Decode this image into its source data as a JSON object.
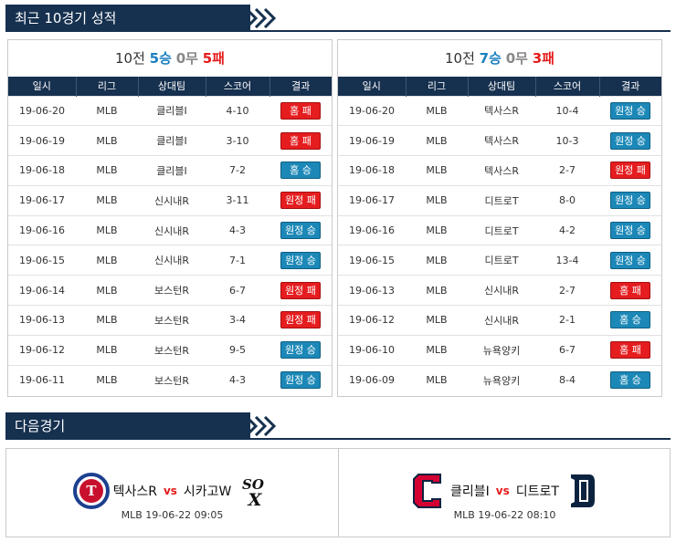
{
  "sections": {
    "recent_title": "최근 10경기 성적",
    "next_title": "다음경기"
  },
  "colors": {
    "navy": "#16304f",
    "win_blue": "#1c88b7",
    "loss_red": "#e51d1f"
  },
  "headers": [
    "일시",
    "리그",
    "상대팀",
    "스코어",
    "결과"
  ],
  "left": {
    "summary": {
      "games": "10전",
      "wins": "5승",
      "draws": "0무",
      "losses": "5패"
    },
    "rows": [
      {
        "date": "19-06-20",
        "league": "MLB",
        "opponent": "클리블I",
        "score": "4-10",
        "result": "홈 패",
        "tone": "red"
      },
      {
        "date": "19-06-19",
        "league": "MLB",
        "opponent": "클리블I",
        "score": "3-10",
        "result": "홈 패",
        "tone": "red"
      },
      {
        "date": "19-06-18",
        "league": "MLB",
        "opponent": "클리블I",
        "score": "7-2",
        "result": "홈 승",
        "tone": "blue"
      },
      {
        "date": "19-06-17",
        "league": "MLB",
        "opponent": "신시내R",
        "score": "3-11",
        "result": "원정 패",
        "tone": "red"
      },
      {
        "date": "19-06-16",
        "league": "MLB",
        "opponent": "신시내R",
        "score": "4-3",
        "result": "원정 승",
        "tone": "blue"
      },
      {
        "date": "19-06-15",
        "league": "MLB",
        "opponent": "신시내R",
        "score": "7-1",
        "result": "원정 승",
        "tone": "blue"
      },
      {
        "date": "19-06-14",
        "league": "MLB",
        "opponent": "보스턴R",
        "score": "6-7",
        "result": "원정 패",
        "tone": "red"
      },
      {
        "date": "19-06-13",
        "league": "MLB",
        "opponent": "보스턴R",
        "score": "3-4",
        "result": "원정 패",
        "tone": "red"
      },
      {
        "date": "19-06-12",
        "league": "MLB",
        "opponent": "보스턴R",
        "score": "9-5",
        "result": "원정 승",
        "tone": "blue"
      },
      {
        "date": "19-06-11",
        "league": "MLB",
        "opponent": "보스턴R",
        "score": "4-3",
        "result": "원정 승",
        "tone": "blue"
      }
    ]
  },
  "right": {
    "summary": {
      "games": "10전",
      "wins": "7승",
      "draws": "0무",
      "losses": "3패"
    },
    "rows": [
      {
        "date": "19-06-20",
        "league": "MLB",
        "opponent": "텍사스R",
        "score": "10-4",
        "result": "원정 승",
        "tone": "blue"
      },
      {
        "date": "19-06-19",
        "league": "MLB",
        "opponent": "텍사스R",
        "score": "10-3",
        "result": "원정 승",
        "tone": "blue"
      },
      {
        "date": "19-06-18",
        "league": "MLB",
        "opponent": "텍사스R",
        "score": "2-7",
        "result": "원정 패",
        "tone": "red"
      },
      {
        "date": "19-06-17",
        "league": "MLB",
        "opponent": "디트로T",
        "score": "8-0",
        "result": "원정 승",
        "tone": "blue"
      },
      {
        "date": "19-06-16",
        "league": "MLB",
        "opponent": "디트로T",
        "score": "4-2",
        "result": "원정 승",
        "tone": "blue"
      },
      {
        "date": "19-06-15",
        "league": "MLB",
        "opponent": "디트로T",
        "score": "13-4",
        "result": "원정 승",
        "tone": "blue"
      },
      {
        "date": "19-06-13",
        "league": "MLB",
        "opponent": "신시내R",
        "score": "2-7",
        "result": "홈 패",
        "tone": "red"
      },
      {
        "date": "19-06-12",
        "league": "MLB",
        "opponent": "신시내R",
        "score": "2-1",
        "result": "홈 승",
        "tone": "blue"
      },
      {
        "date": "19-06-10",
        "league": "MLB",
        "opponent": "뉴욕양키",
        "score": "6-7",
        "result": "홈 패",
        "tone": "red"
      },
      {
        "date": "19-06-09",
        "league": "MLB",
        "opponent": "뉴욕양키",
        "score": "8-4",
        "result": "홈 승",
        "tone": "blue"
      }
    ]
  },
  "next_games": [
    {
      "home": "텍사스R",
      "vs": "vs",
      "away": "시카고W",
      "info": "MLB 19-06-22 09:05",
      "home_logo": "texas-rangers-logo-icon",
      "away_logo": "white-sox-logo-icon"
    },
    {
      "home": "클리블I",
      "vs": "vs",
      "away": "디트로T",
      "info": "MLB 19-06-22 08:10",
      "home_logo": "cleveland-logo-icon",
      "away_logo": "detroit-logo-icon"
    }
  ]
}
